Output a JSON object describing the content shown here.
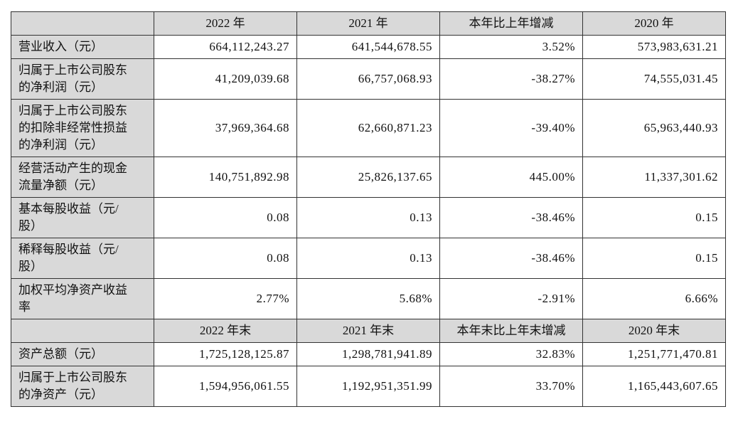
{
  "table": {
    "sections": [
      {
        "header": [
          "2022 年",
          "2021 年",
          "本年比上年增减",
          "2020 年"
        ],
        "rows": [
          {
            "label": [
              "营业收入（元）"
            ],
            "cells": [
              "664,112,243.27",
              "641,544,678.55",
              "3.52%",
              "573,983,631.21"
            ]
          },
          {
            "label": [
              "归属于上市公司股东",
              "的净利润（元）"
            ],
            "cells": [
              "41,209,039.68",
              "66,757,068.93",
              "-38.27%",
              "74,555,031.45"
            ]
          },
          {
            "label": [
              "归属于上市公司股东",
              "的扣除非经常性损益",
              "的净利润（元）"
            ],
            "cells": [
              "37,969,364.68",
              "62,660,871.23",
              "-39.40%",
              "65,963,440.93"
            ]
          },
          {
            "label": [
              "经营活动产生的现金",
              "流量净额（元）"
            ],
            "cells": [
              "140,751,892.98",
              "25,826,137.65",
              "445.00%",
              "11,337,301.62"
            ]
          },
          {
            "label": [
              "基本每股收益（元/",
              "股）"
            ],
            "cells": [
              "0.08",
              "0.13",
              "-38.46%",
              "0.15"
            ]
          },
          {
            "label": [
              "稀释每股收益（元/",
              "股）"
            ],
            "cells": [
              "0.08",
              "0.13",
              "-38.46%",
              "0.15"
            ]
          },
          {
            "label": [
              "加权平均净资产收益",
              "率"
            ],
            "cells": [
              "2.77%",
              "5.68%",
              "-2.91%",
              "6.66%"
            ]
          }
        ]
      },
      {
        "header": [
          "2022 年末",
          "2021 年末",
          "本年末比上年末增减",
          "2020 年末"
        ],
        "rows": [
          {
            "label": [
              "资产总额（元）"
            ],
            "cells": [
              "1,725,128,125.87",
              "1,298,781,941.89",
              "32.83%",
              "1,251,771,470.81"
            ]
          },
          {
            "label": [
              "归属于上市公司股东",
              "的净资产（元）"
            ],
            "cells": [
              "1,594,956,061.55",
              "1,192,951,351.99",
              "33.70%",
              "1,165,443,607.65"
            ]
          }
        ]
      }
    ]
  }
}
